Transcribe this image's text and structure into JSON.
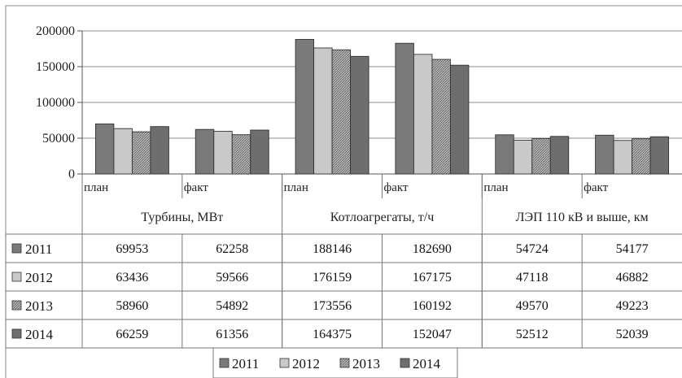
{
  "chart_data": {
    "type": "bar",
    "groups": [
      {
        "label": "Турбины, МВт",
        "categories": [
          "план",
          "факт"
        ]
      },
      {
        "label": "Котлоагрегаты, т/ч",
        "categories": [
          "план",
          "факт"
        ]
      },
      {
        "label": "ЛЭП 110 кВ и выше, км",
        "categories": [
          "план",
          "факт"
        ]
      }
    ],
    "series": [
      {
        "name": "2011",
        "color": "#7a7a7a",
        "values": [
          69953,
          62258,
          188146,
          182690,
          54724,
          54177
        ]
      },
      {
        "name": "2012",
        "color": "#c9c9c9",
        "values": [
          63436,
          59566,
          176159,
          167175,
          47118,
          46882
        ]
      },
      {
        "name": "2013",
        "color": "#a6a6a6",
        "values": [
          58960,
          54892,
          173556,
          160192,
          49570,
          49223
        ]
      },
      {
        "name": "2014",
        "color": "#6e6e6e",
        "values": [
          66259,
          61356,
          164375,
          152047,
          52512,
          52039
        ]
      }
    ],
    "ylim": [
      0,
      200000
    ],
    "yticks": [
      "0",
      "50000",
      "100000",
      "150000",
      "200000"
    ],
    "grid": true,
    "legend": "bottom",
    "data_table": true
  }
}
